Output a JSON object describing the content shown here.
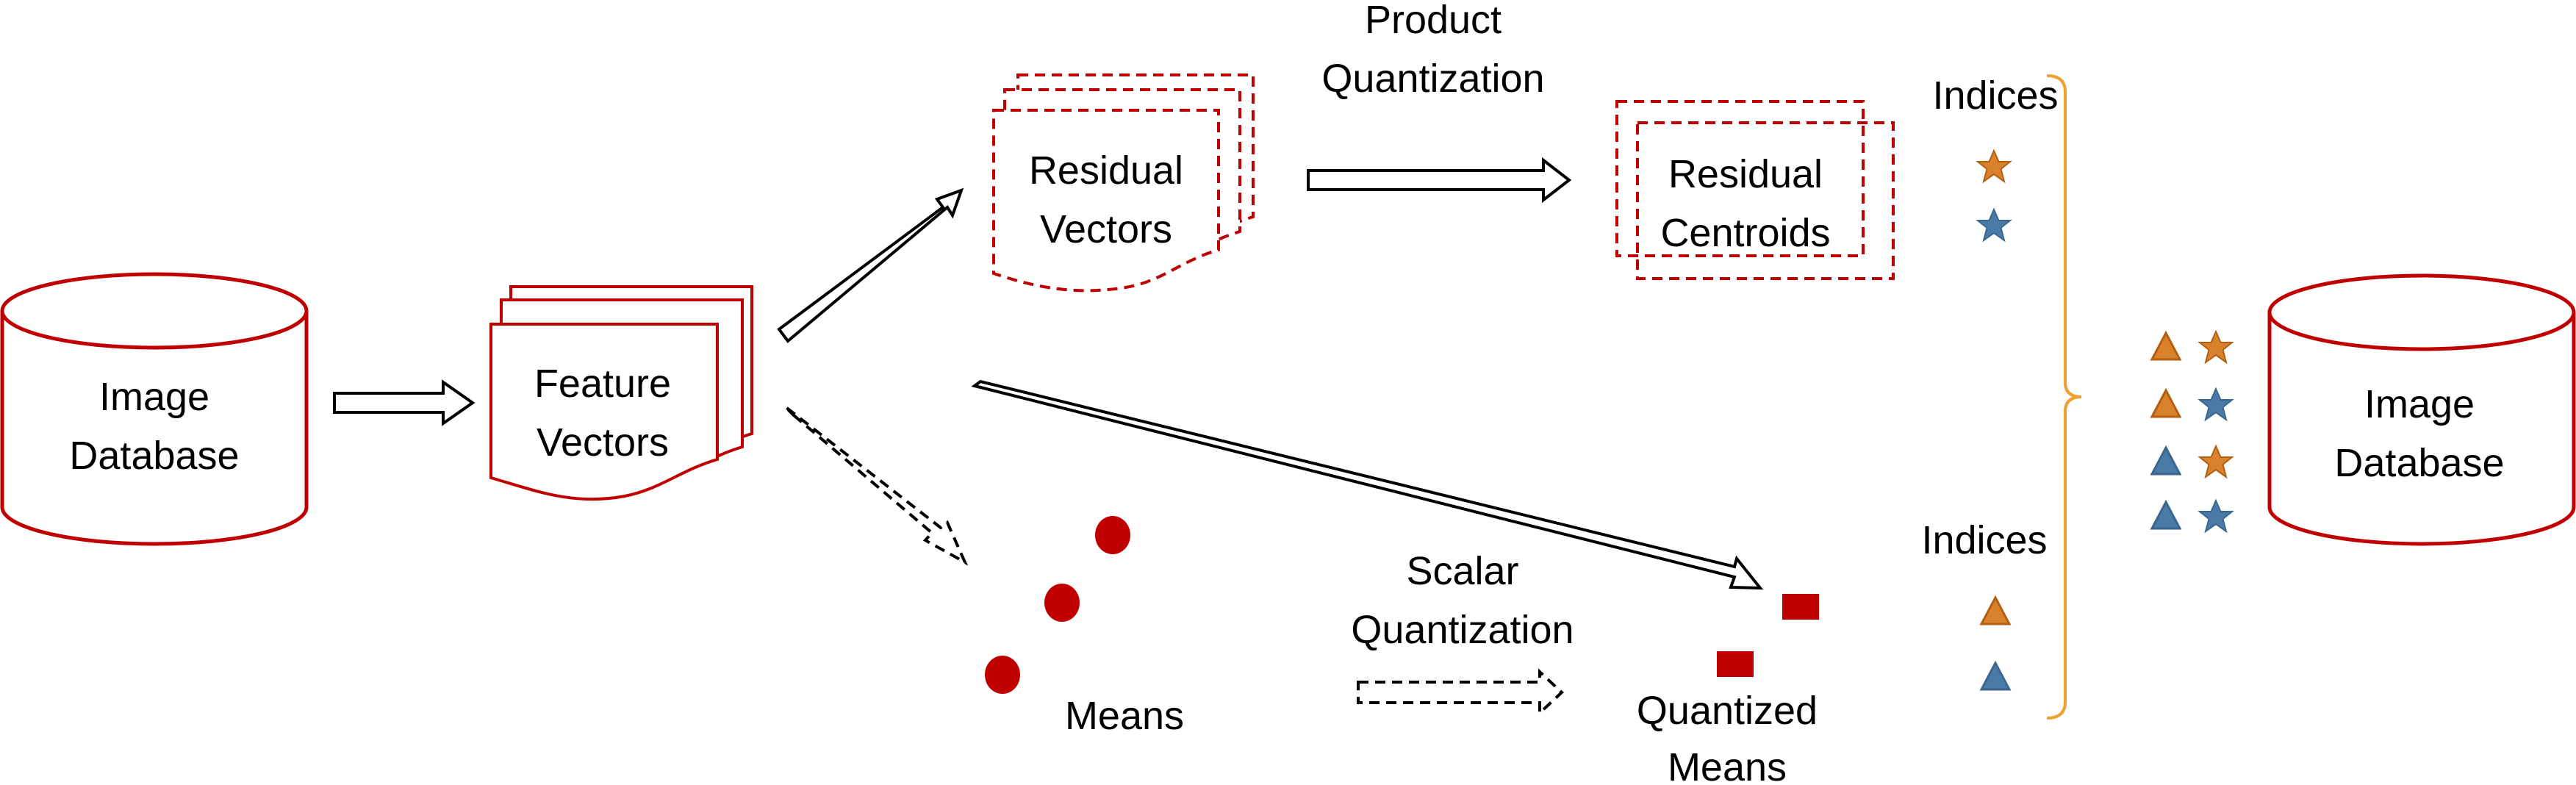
{
  "colors": {
    "red": "#c00000",
    "orange": "#d9822b",
    "blue": "#4a7ba6",
    "bracket": "#f0a030",
    "arrow": "#000000"
  },
  "source_database": {
    "line1": "Image",
    "line2": "Database"
  },
  "feature_vectors": {
    "line1": "Feature",
    "line2": "Vectors"
  },
  "residual_vectors": {
    "line1": "Residual",
    "line2": "Vectors"
  },
  "product_quantization": {
    "line1": "Product",
    "line2": "Quantization"
  },
  "residual_centroids": {
    "line1": "Residual",
    "line2": "Centroids"
  },
  "indices_top": {
    "label": "Indices",
    "icons": [
      "star-orange",
      "star-blue"
    ]
  },
  "means": {
    "label": "Means"
  },
  "scalar_quantization": {
    "line1": "Scalar",
    "line2": "Quantization"
  },
  "quantized_means": {
    "line1": "Quantized",
    "line2": "Means"
  },
  "indices_bottom": {
    "label": "Indices",
    "icons": [
      "triangle-orange",
      "triangle-blue"
    ]
  },
  "combined_indices": [
    [
      "triangle-orange",
      "star-orange"
    ],
    [
      "triangle-orange",
      "star-blue"
    ],
    [
      "triangle-blue",
      "star-orange"
    ],
    [
      "triangle-blue",
      "star-blue"
    ]
  ],
  "target_database": {
    "line1": "Image",
    "line2": "Database"
  }
}
